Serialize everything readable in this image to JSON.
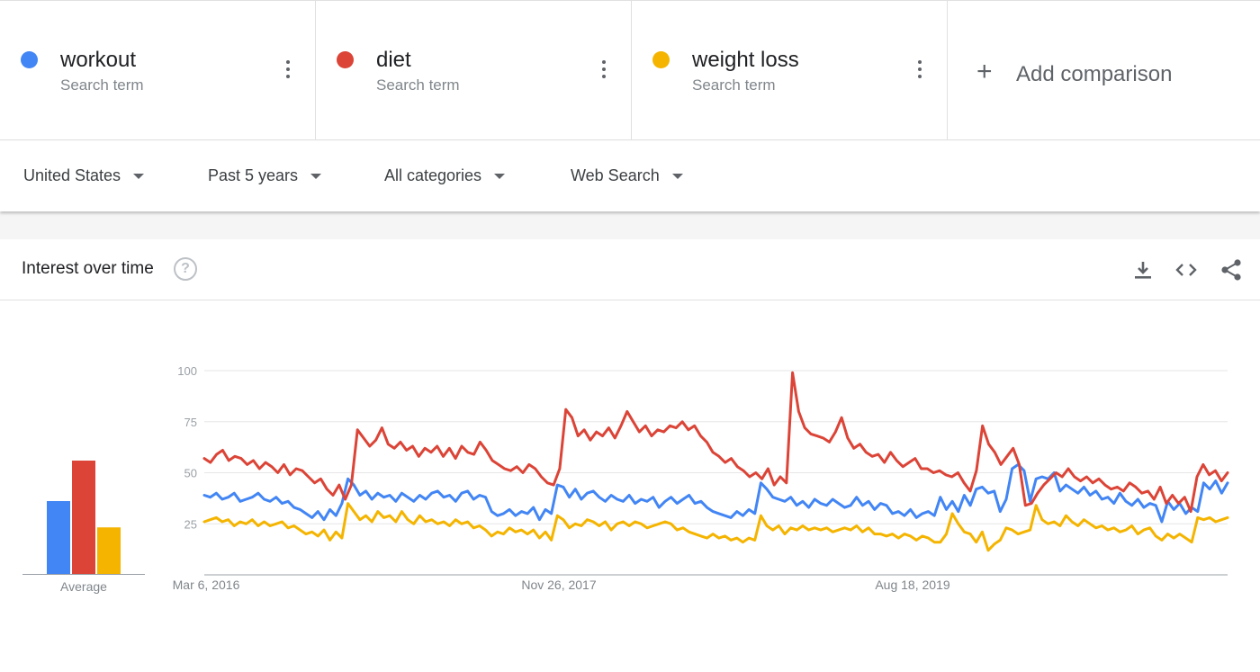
{
  "terms": [
    {
      "name": "workout",
      "subtitle": "Search term",
      "color": "#4285f4"
    },
    {
      "name": "diet",
      "subtitle": "Search term",
      "color": "#db4437"
    },
    {
      "name": "weight loss",
      "subtitle": "Search term",
      "color": "#f4b400"
    }
  ],
  "add_comparison": {
    "label": "Add comparison",
    "icon": "plus-icon"
  },
  "filters": [
    {
      "label": "United States"
    },
    {
      "label": "Past 5 years"
    },
    {
      "label": "All categories"
    },
    {
      "label": "Web Search"
    }
  ],
  "card": {
    "title": "Interest over time",
    "help_icon": "question-icon",
    "tools": [
      "download-icon",
      "embed-code-icon",
      "share-icon"
    ]
  },
  "chart_data": {
    "type": "line",
    "x_labels": [
      "Mar 6, 2016",
      "Nov 26, 2017",
      "Aug 18, 2019"
    ],
    "ylim": [
      0,
      100
    ],
    "yticks": [
      25,
      50,
      75,
      100
    ],
    "grid": true,
    "series": [
      {
        "name": "workout",
        "color": "#4285f4",
        "values": [
          39,
          38,
          40,
          37,
          38,
          40,
          36,
          37,
          38,
          40,
          37,
          36,
          38,
          35,
          36,
          33,
          32,
          30,
          28,
          31,
          27,
          32,
          29,
          35,
          47,
          44,
          39,
          41,
          37,
          40,
          38,
          39,
          36,
          40,
          38,
          36,
          39,
          37,
          40,
          41,
          38,
          39,
          36,
          40,
          41,
          37,
          39,
          38,
          31,
          29,
          30,
          32,
          29,
          31,
          30,
          33,
          27,
          32,
          30,
          44,
          43,
          38,
          42,
          37,
          40,
          41,
          38,
          36,
          39,
          37,
          36,
          39,
          35,
          37,
          36,
          38,
          33,
          36,
          38,
          35,
          37,
          39,
          35,
          36,
          33,
          31,
          30,
          29,
          28,
          31,
          29,
          32,
          30,
          45,
          42,
          38,
          37,
          36,
          38,
          34,
          36,
          33,
          37,
          35,
          34,
          37,
          35,
          33,
          34,
          38,
          34,
          36,
          32,
          35,
          34,
          30,
          31,
          29,
          32,
          28,
          30,
          31,
          29,
          38,
          32,
          36,
          31,
          39,
          34,
          42,
          43,
          40,
          41,
          31,
          37,
          52,
          54,
          51,
          36,
          47,
          48,
          47,
          50,
          41,
          44,
          42,
          40,
          43,
          39,
          41,
          37,
          38,
          35,
          40,
          36,
          34,
          37,
          33,
          35,
          34,
          26,
          36,
          32,
          35,
          30,
          33,
          31,
          45,
          42,
          46,
          40,
          45
        ]
      },
      {
        "name": "diet",
        "color": "#db4437",
        "values": [
          57,
          55,
          59,
          61,
          56,
          58,
          57,
          54,
          56,
          52,
          55,
          53,
          50,
          54,
          49,
          52,
          51,
          48,
          45,
          47,
          42,
          39,
          44,
          37,
          44,
          71,
          67,
          63,
          66,
          72,
          64,
          62,
          65,
          61,
          63,
          58,
          62,
          60,
          63,
          58,
          62,
          57,
          63,
          60,
          59,
          65,
          61,
          56,
          54,
          52,
          51,
          53,
          50,
          54,
          52,
          48,
          45,
          44,
          52,
          81,
          77,
          68,
          71,
          66,
          70,
          68,
          72,
          67,
          73,
          80,
          75,
          70,
          73,
          68,
          71,
          70,
          73,
          72,
          75,
          71,
          73,
          68,
          65,
          60,
          58,
          55,
          57,
          53,
          51,
          48,
          50,
          47,
          52,
          44,
          48,
          45,
          99,
          80,
          72,
          69,
          68,
          67,
          65,
          70,
          77,
          67,
          62,
          64,
          60,
          58,
          59,
          55,
          60,
          56,
          53,
          55,
          57,
          52,
          52,
          50,
          51,
          49,
          48,
          50,
          45,
          41,
          51,
          73,
          64,
          60,
          54,
          58,
          62,
          54,
          34,
          35,
          40,
          44,
          47,
          50,
          48,
          52,
          48,
          46,
          48,
          45,
          47,
          44,
          42,
          43,
          41,
          45,
          43,
          40,
          41,
          37,
          43,
          35,
          39,
          35,
          38,
          31,
          48,
          54,
          49,
          51,
          46,
          50
        ]
      },
      {
        "name": "weight loss",
        "color": "#f4b400",
        "values": [
          26,
          27,
          28,
          26,
          27,
          24,
          26,
          25,
          27,
          24,
          26,
          24,
          25,
          26,
          23,
          24,
          22,
          20,
          21,
          19,
          22,
          17,
          21,
          18,
          35,
          31,
          27,
          29,
          26,
          31,
          28,
          29,
          26,
          31,
          27,
          25,
          29,
          26,
          27,
          25,
          26,
          24,
          27,
          25,
          26,
          23,
          24,
          22,
          19,
          21,
          20,
          23,
          21,
          22,
          20,
          22,
          18,
          21,
          17,
          29,
          27,
          23,
          25,
          24,
          27,
          26,
          24,
          26,
          22,
          25,
          26,
          24,
          26,
          25,
          23,
          24,
          25,
          26,
          25,
          22,
          23,
          21,
          20,
          19,
          18,
          20,
          18,
          19,
          17,
          18,
          16,
          18,
          17,
          29,
          24,
          22,
          24,
          20,
          23,
          22,
          24,
          22,
          23,
          22,
          23,
          21,
          22,
          23,
          22,
          24,
          21,
          23,
          20,
          20,
          19,
          20,
          18,
          20,
          19,
          17,
          19,
          18,
          16,
          16,
          20,
          30,
          25,
          21,
          20,
          16,
          21,
          12,
          15,
          17,
          23,
          22,
          20,
          21,
          22,
          34,
          27,
          25,
          26,
          24,
          29,
          26,
          24,
          27,
          25,
          23,
          24,
          22,
          23,
          21,
          22,
          24,
          20,
          22,
          23,
          19,
          17,
          20,
          18,
          20,
          18,
          16,
          28,
          27,
          28,
          26,
          27,
          28
        ]
      }
    ],
    "average": {
      "label": "Average",
      "values": [
        36,
        56,
        23
      ]
    }
  }
}
